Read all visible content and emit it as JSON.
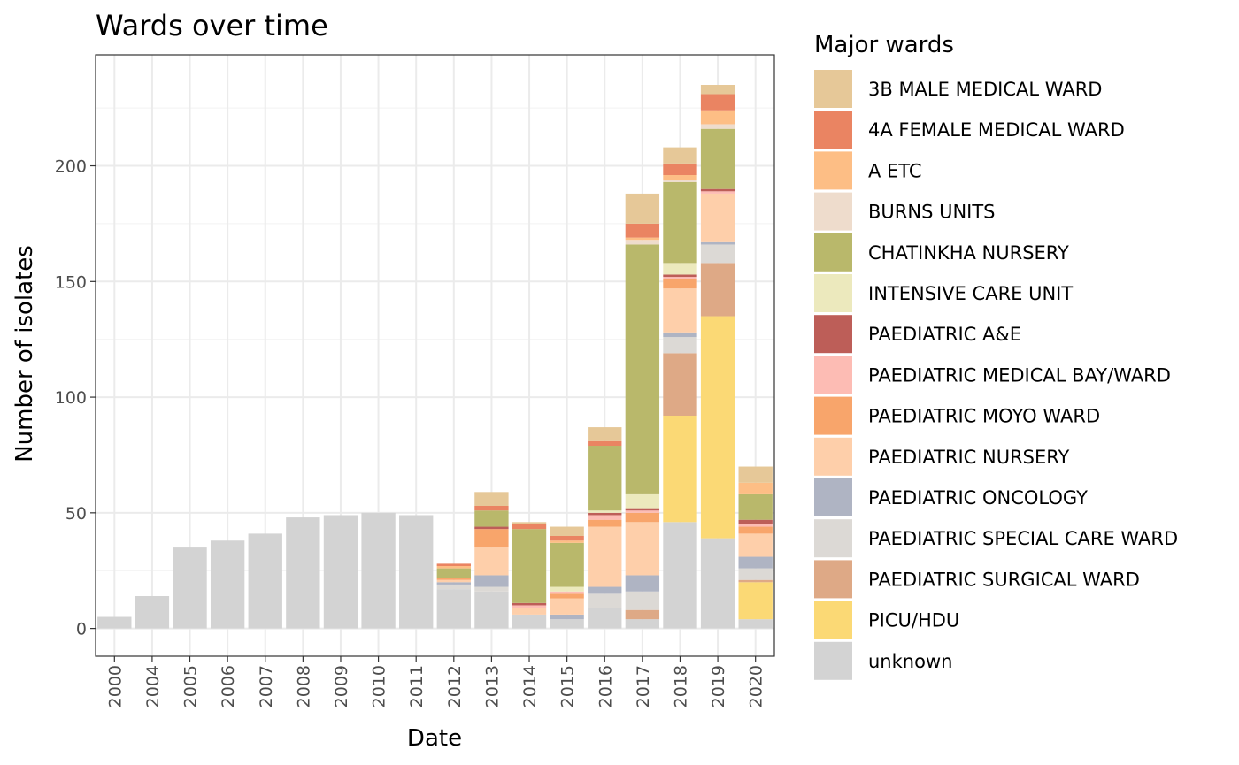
{
  "chart_data": {
    "type": "bar",
    "stacked": true,
    "title": "Wards over time",
    "xlabel": "Date",
    "ylabel": "Number of isolates",
    "ylim": [
      -12,
      248
    ],
    "yticks": [
      0,
      50,
      100,
      150,
      200
    ],
    "grid": true,
    "legend_title": "Major wards",
    "legend_position": "right",
    "categories": [
      "2000",
      "2004",
      "2005",
      "2006",
      "2007",
      "2008",
      "2009",
      "2010",
      "2011",
      "2012",
      "2013",
      "2014",
      "2015",
      "2016",
      "2017",
      "2018",
      "2019",
      "2020"
    ],
    "series": [
      {
        "name": "unknown",
        "color": "#d3d3d3",
        "values": [
          5,
          14,
          35,
          38,
          41,
          48,
          49,
          50,
          49,
          17,
          16,
          6,
          4,
          9,
          4,
          46,
          39,
          4
        ]
      },
      {
        "name": "PICU/HDU",
        "color": "#fbd975",
        "values": [
          0,
          0,
          0,
          0,
          0,
          0,
          0,
          0,
          0,
          0,
          0,
          0,
          0,
          0,
          0,
          46,
          96,
          16
        ]
      },
      {
        "name": "PAEDIATRIC SURGICAL WARD",
        "color": "#dea986",
        "values": [
          0,
          0,
          0,
          0,
          0,
          0,
          0,
          0,
          0,
          0,
          0,
          0,
          0,
          0,
          4,
          27,
          23,
          1
        ]
      },
      {
        "name": "PAEDIATRIC SPECIAL CARE WARD",
        "color": "#dcd9d5",
        "values": [
          0,
          0,
          0,
          0,
          0,
          0,
          0,
          0,
          0,
          2,
          2,
          0,
          0,
          6,
          8,
          7,
          8,
          5
        ]
      },
      {
        "name": "PAEDIATRIC ONCOLOGY",
        "color": "#afb4c3",
        "values": [
          0,
          0,
          0,
          0,
          0,
          0,
          0,
          0,
          0,
          1,
          5,
          0,
          2,
          3,
          7,
          2,
          1,
          5
        ]
      },
      {
        "name": "PAEDIATRIC NURSERY",
        "color": "#fecfaa",
        "values": [
          0,
          0,
          0,
          0,
          0,
          0,
          0,
          0,
          0,
          1,
          12,
          3,
          7,
          26,
          23,
          19,
          21,
          10
        ]
      },
      {
        "name": "PAEDIATRIC MOYO WARD",
        "color": "#f8a56b",
        "values": [
          0,
          0,
          0,
          0,
          0,
          0,
          0,
          0,
          0,
          1,
          8,
          0,
          2,
          3,
          4,
          4,
          0,
          3
        ]
      },
      {
        "name": "PAEDIATRIC MEDICAL BAY/WARD",
        "color": "#fdbcb4",
        "values": [
          0,
          0,
          0,
          0,
          0,
          0,
          0,
          0,
          0,
          0,
          0,
          1,
          1,
          2,
          1,
          1,
          1,
          1
        ]
      },
      {
        "name": "PAEDIATRIC A&E",
        "color": "#bd5e58",
        "values": [
          0,
          0,
          0,
          0,
          0,
          0,
          0,
          0,
          0,
          0,
          1,
          1,
          0,
          1,
          1,
          1,
          1,
          2
        ]
      },
      {
        "name": "INTENSIVE CARE UNIT",
        "color": "#ece9bd",
        "values": [
          0,
          0,
          0,
          0,
          0,
          0,
          0,
          0,
          0,
          0,
          0,
          0,
          2,
          1,
          6,
          5,
          0,
          0
        ]
      },
      {
        "name": "CHATINKHA NURSERY",
        "color": "#b9b86b",
        "values": [
          0,
          0,
          0,
          0,
          0,
          0,
          0,
          0,
          0,
          4,
          7,
          32,
          19,
          28,
          108,
          35,
          26,
          11
        ]
      },
      {
        "name": "BURNS UNITS",
        "color": "#eedccc",
        "values": [
          0,
          0,
          0,
          0,
          0,
          0,
          0,
          0,
          0,
          0,
          0,
          0,
          0,
          0,
          2,
          1,
          2,
          0
        ]
      },
      {
        "name": "A ETC",
        "color": "#fdbe85",
        "values": [
          0,
          0,
          0,
          0,
          0,
          0,
          0,
          0,
          0,
          1,
          0,
          0,
          1,
          0,
          1,
          2,
          6,
          5
        ]
      },
      {
        "name": "4A FEMALE MEDICAL WARD",
        "color": "#ea8462",
        "values": [
          0,
          0,
          0,
          0,
          0,
          0,
          0,
          0,
          0,
          1,
          2,
          2,
          2,
          2,
          6,
          5,
          7,
          0
        ]
      },
      {
        "name": "3B MALE MEDICAL WARD",
        "color": "#e6c898",
        "values": [
          0,
          0,
          0,
          0,
          0,
          0,
          0,
          0,
          0,
          0,
          6,
          1,
          4,
          6,
          13,
          7,
          4,
          7
        ]
      }
    ],
    "legend_order": [
      "3B MALE MEDICAL WARD",
      "4A FEMALE MEDICAL WARD",
      "A ETC",
      "BURNS UNITS",
      "CHATINKHA NURSERY",
      "INTENSIVE CARE UNIT",
      "PAEDIATRIC A&E",
      "PAEDIATRIC MEDICAL BAY/WARD",
      "PAEDIATRIC MOYO WARD",
      "PAEDIATRIC NURSERY",
      "PAEDIATRIC ONCOLOGY",
      "PAEDIATRIC SPECIAL CARE WARD",
      "PAEDIATRIC SURGICAL WARD",
      "PICU/HDU",
      "unknown"
    ]
  }
}
